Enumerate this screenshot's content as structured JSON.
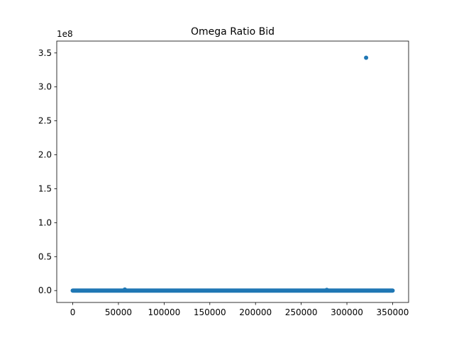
{
  "chart_data": {
    "type": "scatter",
    "title": "Omega Ratio Bid",
    "xlabel": "",
    "ylabel": "",
    "y_offset_label": "1e8",
    "xlim": [
      -17500,
      367500
    ],
    "ylim": [
      -17500000,
      367500000
    ],
    "x_ticks": [
      0,
      50000,
      100000,
      150000,
      200000,
      250000,
      300000,
      350000
    ],
    "x_tick_labels": [
      "0",
      "50000",
      "100000",
      "150000",
      "200000",
      "250000",
      "300000",
      "350000"
    ],
    "y_ticks": [
      0,
      50000000,
      100000000,
      150000000,
      200000000,
      250000000,
      300000000,
      350000000
    ],
    "y_tick_labels": [
      "0.0",
      "0.5",
      "1.0",
      "1.5",
      "2.0",
      "2.5",
      "3.0",
      "3.5"
    ],
    "grid": false,
    "legend": "none",
    "color": "#1f77b4",
    "series": [
      {
        "band": {
          "x_start": 0,
          "x_end": 350000,
          "y": 0
        },
        "points": [
          {
            "x": 57000,
            "y": 1500000
          },
          {
            "x": 278000,
            "y": 1000000
          },
          {
            "x": 321000,
            "y": 343000000
          }
        ]
      }
    ]
  }
}
